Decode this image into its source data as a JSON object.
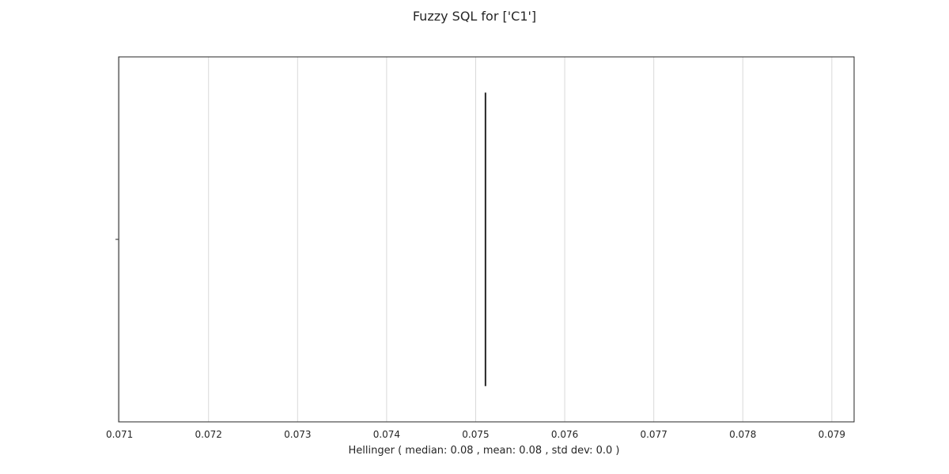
{
  "chart_data": {
    "type": "box",
    "title": "Fuzzy SQL for ['C1']",
    "xlabel": "Hellinger ( median: 0.08 , mean: 0.08 , std dev: 0.0 )",
    "ylabel": "",
    "orientation": "horizontal",
    "xlim": [
      0.07099,
      0.07925
    ],
    "xticks": [
      0.071,
      0.072,
      0.073,
      0.074,
      0.075,
      0.076,
      0.077,
      0.078,
      0.079
    ],
    "xtick_labels": [
      "0.071",
      "0.072",
      "0.073",
      "0.074",
      "0.075",
      "0.076",
      "0.077",
      "0.078",
      "0.079"
    ],
    "grid": "vertical",
    "series": [
      {
        "values": [
          0.07511
        ],
        "median": 0.07511,
        "q1": 0.07511,
        "q3": 0.07511,
        "min": 0.07511,
        "max": 0.07511
      }
    ],
    "colors": {
      "grid": "#d9d9d9",
      "frame": "#262626",
      "median": "#262626",
      "text": "#262626"
    }
  }
}
